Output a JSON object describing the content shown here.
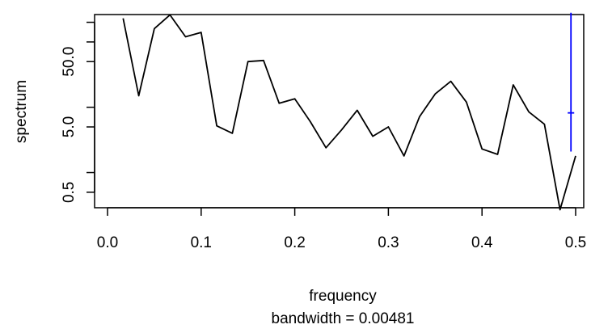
{
  "chart_data": {
    "type": "line",
    "xlabel": "frequency",
    "sub_label": "bandwidth = 0.00481",
    "ylabel": "spectrum",
    "x_scale": "linear",
    "y_scale": "log",
    "xlim": [
      0.0,
      0.5
    ],
    "ylim": [
      0.2,
      330
    ],
    "x_ticks": [
      0.0,
      0.1,
      0.2,
      0.3,
      0.4,
      0.5
    ],
    "x_tick_labels": [
      "0.0",
      "0.1",
      "0.2",
      "0.3",
      "0.4",
      "0.5"
    ],
    "y_ticks_labeled": [
      0.5,
      5.0,
      50.0
    ],
    "y_tick_labels": [
      "0.5",
      "5.0",
      "50.0"
    ],
    "y_ticks_unlabeled": [
      1,
      10,
      100,
      200
    ],
    "series": [
      {
        "color": "#000000",
        "x": [
          0.0167,
          0.0333,
          0.05,
          0.0667,
          0.0833,
          0.1,
          0.1167,
          0.1333,
          0.15,
          0.1667,
          0.1833,
          0.2,
          0.2167,
          0.2333,
          0.25,
          0.2667,
          0.2833,
          0.3,
          0.3167,
          0.3333,
          0.35,
          0.3667,
          0.3833,
          0.4,
          0.4167,
          0.4333,
          0.45,
          0.4667,
          0.4833,
          0.5
        ],
        "y": [
          230,
          15,
          160,
          260,
          120,
          140,
          5.2,
          4.0,
          50,
          52,
          11.5,
          13.5,
          6.0,
          2.4,
          4.5,
          9.0,
          3.6,
          5.0,
          1.8,
          7.2,
          16,
          25,
          12.0,
          2.3,
          1.9,
          22,
          8.5,
          5.5,
          0.27,
          1.8
        ]
      }
    ],
    "ci_bar": {
      "color": "#0000ff",
      "x": 0.495,
      "lower": 2.1,
      "center": 8.2,
      "upper": 280
    }
  }
}
